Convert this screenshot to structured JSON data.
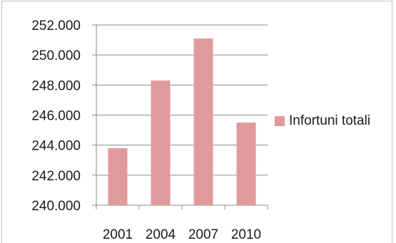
{
  "chart_data": {
    "type": "bar",
    "categories": [
      "2001",
      "2004",
      "2007",
      "2010"
    ],
    "series": [
      {
        "name": "Infortuni totali",
        "values": [
          243800,
          248300,
          251100,
          245500
        ]
      }
    ],
    "y_ticks": [
      "240.000",
      "242.000",
      "244.000",
      "246.000",
      "248.000",
      "250.000",
      "252.000"
    ],
    "ylim": [
      240000,
      252000
    ],
    "grid": true,
    "legend_position": "right",
    "color": "#e19a9c"
  }
}
